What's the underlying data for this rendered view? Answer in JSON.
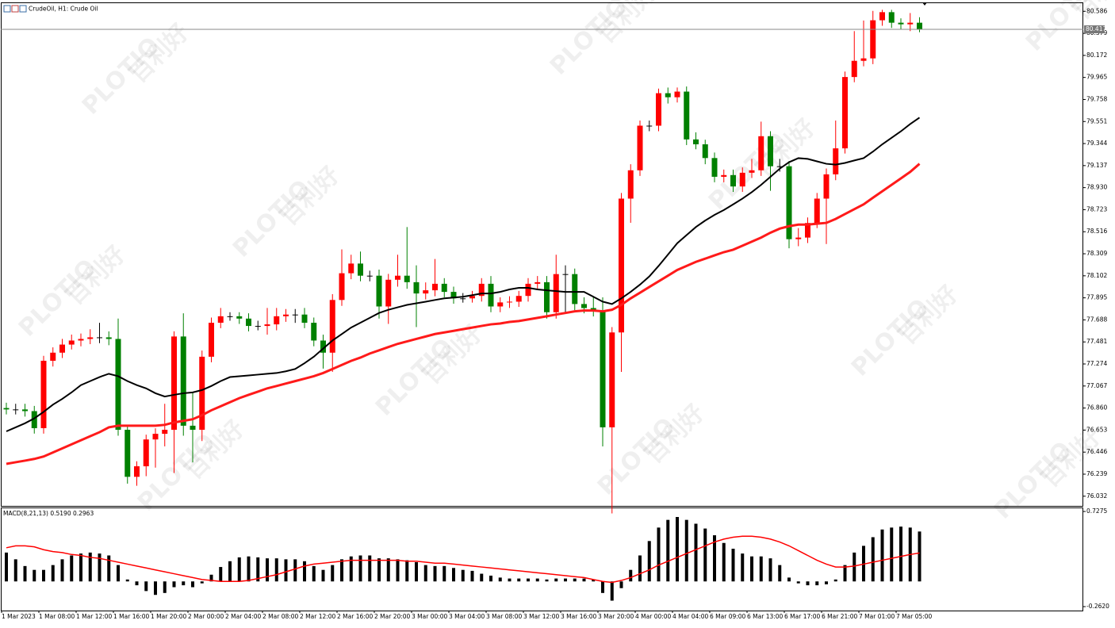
{
  "watermark": {
    "brand": "PLOTIO",
    "cn": "百利好"
  },
  "chart_data": [
    {
      "type": "candlestick",
      "title": "CrudeOil, H1: Crude Oil",
      "categories": [
        "1 Mar 2023",
        null,
        null,
        null,
        "1 Mar 08:00",
        null,
        null,
        null,
        "1 Mar 12:00",
        null,
        null,
        null,
        "1 Mar 16:00",
        null,
        null,
        null,
        "1 Mar 20:00",
        null,
        null,
        null,
        "2 Mar 00:00",
        null,
        null,
        null,
        "2 Mar 04:00",
        null,
        null,
        null,
        "2 Mar 08:00",
        null,
        null,
        null,
        "2 Mar 12:00",
        null,
        null,
        null,
        "2 Mar 16:00",
        null,
        null,
        null,
        "2 Mar 20:00",
        null,
        null,
        null,
        "3 Mar 00:00",
        null,
        null,
        null,
        "3 Mar 04:00",
        null,
        null,
        null,
        "3 Mar 08:00",
        null,
        null,
        null,
        "3 Mar 12:00",
        null,
        null,
        null,
        "3 Mar 16:00",
        null,
        null,
        null,
        "3 Mar 20:00",
        null,
        null,
        null,
        "4 Mar 00:00",
        null,
        null,
        null,
        "4 Mar 04:00",
        null,
        null,
        null,
        "6 Mar 09:00",
        null,
        null,
        null,
        "6 Mar 13:00",
        null,
        null,
        null,
        "6 Mar 17:00",
        null,
        null,
        null,
        "6 Mar 21:00",
        null,
        null,
        null,
        "7 Mar 01:00",
        null,
        null,
        null,
        "7 Mar 05:00",
        null,
        null
      ],
      "open": [
        76.86,
        76.847,
        76.847,
        76.831,
        76.671,
        77.304,
        77.38,
        77.456,
        77.494,
        77.509,
        77.524,
        77.524,
        77.509,
        76.656,
        76.214,
        76.313,
        76.565,
        76.618,
        76.656,
        77.532,
        76.694,
        76.656,
        77.342,
        77.661,
        77.722,
        77.722,
        77.7,
        77.631,
        77.631,
        77.646,
        77.722,
        77.738,
        77.738,
        77.661,
        77.494,
        77.38,
        77.875,
        78.126,
        78.217,
        78.103,
        78.103,
        77.814,
        78.065,
        78.103,
        78.042,
        77.936,
        77.966,
        78.027,
        77.951,
        77.89,
        77.89,
        77.913,
        78.027,
        77.814,
        77.852,
        77.859,
        77.913,
        78.027,
        78.042,
        77.76,
        78.118,
        78.118,
        77.837,
        77.799,
        77.776,
        76.679,
        77.57,
        78.827,
        79.093,
        79.512,
        79.512,
        79.817,
        79.779,
        79.832,
        79.383,
        79.337,
        79.208,
        79.032,
        79.048,
        78.941,
        79.07,
        79.093,
        79.413,
        79.131,
        79.131,
        78.446,
        78.461,
        78.598,
        78.827,
        79.055,
        79.299,
        79.969,
        80.121,
        80.144,
        80.502,
        80.578,
        80.479,
        80.464,
        80.479
      ],
      "high": [
        76.91,
        76.9,
        76.9,
        76.88,
        77.35,
        77.43,
        77.51,
        77.55,
        77.56,
        77.6,
        77.66,
        77.58,
        77.7,
        76.7,
        76.36,
        76.61,
        76.67,
        76.9,
        77.58,
        77.75,
        77.0,
        77.4,
        77.71,
        77.8,
        77.76,
        77.76,
        77.75,
        77.68,
        77.8,
        77.8,
        77.79,
        77.79,
        77.8,
        77.71,
        77.55,
        77.93,
        78.35,
        78.3,
        78.33,
        78.15,
        78.16,
        78.12,
        78.3,
        78.56,
        78.2,
        78.04,
        78.26,
        78.08,
        78.0,
        77.94,
        77.96,
        78.08,
        78.1,
        77.9,
        77.91,
        77.96,
        78.08,
        78.1,
        78.1,
        78.3,
        78.2,
        78.17,
        77.9,
        77.9,
        77.9,
        77.62,
        78.88,
        79.15,
        79.56,
        79.56,
        79.86,
        79.87,
        79.87,
        79.88,
        79.45,
        79.38,
        79.26,
        79.1,
        79.1,
        79.12,
        79.2,
        79.55,
        79.46,
        79.2,
        79.18,
        78.55,
        78.65,
        78.88,
        79.11,
        79.56,
        80.02,
        80.4,
        80.5,
        80.59,
        80.6,
        80.6,
        80.52,
        80.57,
        80.53
      ],
      "low": [
        76.8,
        76.8,
        76.78,
        76.62,
        76.62,
        77.25,
        77.33,
        77.41,
        77.44,
        77.46,
        77.47,
        77.45,
        76.6,
        76.15,
        76.13,
        76.22,
        76.3,
        76.5,
        76.25,
        76.6,
        76.35,
        76.55,
        77.29,
        77.61,
        77.68,
        77.65,
        77.58,
        77.59,
        77.55,
        77.59,
        77.67,
        77.66,
        77.61,
        77.44,
        77.23,
        77.2,
        77.82,
        78.07,
        78.05,
        78.05,
        77.7,
        77.65,
        78.0,
        77.98,
        77.62,
        77.88,
        77.91,
        77.9,
        77.84,
        77.85,
        77.85,
        77.86,
        77.76,
        77.76,
        77.8,
        77.81,
        77.86,
        77.98,
        77.7,
        77.7,
        77.75,
        77.78,
        77.75,
        77.72,
        76.5,
        75.87,
        77.2,
        78.6,
        79.04,
        79.46,
        79.46,
        79.72,
        79.73,
        79.33,
        79.29,
        79.15,
        78.98,
        78.98,
        78.89,
        78.89,
        79.02,
        79.04,
        78.9,
        79.08,
        78.36,
        78.38,
        78.41,
        78.55,
        78.4,
        79.0,
        79.25,
        79.92,
        80.07,
        80.09,
        80.45,
        80.43,
        80.42,
        80.4,
        80.39
      ],
      "close": [
        76.847,
        76.847,
        76.831,
        76.671,
        77.304,
        77.38,
        77.456,
        77.494,
        77.509,
        77.524,
        77.524,
        77.509,
        76.656,
        76.214,
        76.313,
        76.565,
        76.618,
        76.656,
        77.532,
        76.694,
        76.656,
        77.342,
        77.661,
        77.722,
        77.722,
        77.7,
        77.631,
        77.631,
        77.646,
        77.722,
        77.738,
        77.738,
        77.661,
        77.494,
        77.38,
        77.875,
        78.126,
        78.217,
        78.103,
        78.103,
        77.814,
        78.065,
        78.103,
        78.042,
        77.936,
        77.966,
        78.027,
        77.951,
        77.89,
        77.89,
        77.913,
        78.027,
        77.814,
        77.852,
        77.859,
        77.913,
        78.027,
        78.042,
        77.76,
        78.118,
        78.118,
        77.837,
        77.799,
        77.776,
        76.679,
        77.57,
        78.827,
        79.093,
        79.512,
        79.512,
        79.817,
        79.779,
        79.832,
        79.383,
        79.337,
        79.208,
        79.032,
        79.048,
        78.941,
        79.07,
        79.093,
        79.413,
        79.131,
        79.131,
        78.446,
        78.461,
        78.598,
        78.827,
        79.055,
        79.299,
        79.969,
        80.121,
        80.144,
        80.502,
        80.578,
        80.479,
        80.464,
        80.479,
        80.418
      ],
      "up_color": "#ff0000",
      "down_color": "#008000",
      "overlays": [
        {
          "color": "#000000",
          "values": [
            76.641,
            76.679,
            76.717,
            76.763,
            76.824,
            76.892,
            76.946,
            77.007,
            77.075,
            77.113,
            77.151,
            77.182,
            77.159,
            77.113,
            77.075,
            77.045,
            76.999,
            76.968,
            76.984,
            76.999,
            77.007,
            77.029,
            77.067,
            77.113,
            77.151,
            77.159,
            77.166,
            77.174,
            77.182,
            77.189,
            77.205,
            77.227,
            77.281,
            77.342,
            77.418,
            77.494,
            77.555,
            77.616,
            77.661,
            77.707,
            77.753,
            77.783,
            77.806,
            77.829,
            77.844,
            77.859,
            77.875,
            77.89,
            77.898,
            77.905,
            77.92,
            77.936,
            77.936,
            77.951,
            77.974,
            77.989,
            77.989,
            77.974,
            77.966,
            77.958,
            77.951,
            77.951,
            77.951,
            77.905,
            77.859,
            77.837,
            77.89,
            77.951,
            78.019,
            78.096,
            78.195,
            78.301,
            78.408,
            78.484,
            78.56,
            78.621,
            78.674,
            78.72,
            78.773,
            78.827,
            78.888,
            78.956,
            79.032,
            79.108,
            79.169,
            79.207,
            79.2,
            79.177,
            79.154,
            79.146,
            79.162,
            79.185,
            79.207,
            79.268,
            79.337,
            79.398,
            79.459,
            79.527,
            79.588
          ]
        },
        {
          "color": "#ff1a1a",
          "values": [
            76.336,
            76.351,
            76.366,
            76.382,
            76.405,
            76.443,
            76.481,
            76.519,
            76.557,
            76.595,
            76.633,
            76.679,
            76.694,
            76.694,
            76.694,
            76.694,
            76.694,
            76.702,
            76.725,
            76.74,
            76.755,
            76.793,
            76.839,
            76.877,
            76.915,
            76.953,
            76.984,
            77.014,
            77.045,
            77.067,
            77.09,
            77.113,
            77.136,
            77.159,
            77.189,
            77.227,
            77.265,
            77.303,
            77.334,
            77.372,
            77.402,
            77.433,
            77.463,
            77.486,
            77.509,
            77.532,
            77.555,
            77.57,
            77.585,
            77.601,
            77.616,
            77.631,
            77.646,
            77.654,
            77.669,
            77.677,
            77.692,
            77.707,
            77.722,
            77.738,
            77.753,
            77.768,
            77.776,
            77.776,
            77.768,
            77.783,
            77.829,
            77.89,
            77.943,
            77.997,
            78.05,
            78.103,
            78.157,
            78.195,
            78.233,
            78.263,
            78.294,
            78.324,
            78.347,
            78.385,
            78.423,
            78.461,
            78.507,
            78.545,
            78.568,
            78.583,
            78.583,
            78.591,
            78.599,
            78.636,
            78.682,
            78.728,
            78.773,
            78.835,
            78.896,
            78.956,
            79.017,
            79.078,
            79.154
          ]
        }
      ],
      "last_price": 80.417,
      "ylim": [
        75.941,
        80.67
      ],
      "yticks": [
        80.586,
        80.379,
        80.172,
        79.965,
        79.758,
        79.551,
        79.344,
        79.137,
        {
          "value": 78.93,
          "label": "78.930"
        },
        78.723,
        78.516,
        78.309,
        78.102,
        77.895,
        77.688,
        77.481,
        77.274,
        77.067,
        {
          "value": 76.86,
          "label": "76.860"
        },
        76.653,
        76.446,
        76.239,
        76.032
      ]
    },
    {
      "type": "macd",
      "label": "MACD(8,21,13) 0.5190 0.2963",
      "color": "#000000",
      "values": [
        0.3,
        0.23,
        0.16,
        0.12,
        0.12,
        0.17,
        0.23,
        0.27,
        0.29,
        0.3,
        0.29,
        0.27,
        0.17,
        0.02,
        -0.04,
        -0.1,
        -0.14,
        -0.12,
        -0.06,
        -0.04,
        -0.06,
        -0.02,
        0.07,
        0.15,
        0.21,
        0.25,
        0.26,
        0.25,
        0.24,
        0.24,
        0.23,
        0.23,
        0.21,
        0.16,
        0.12,
        0.17,
        0.23,
        0.26,
        0.27,
        0.27,
        0.24,
        0.24,
        0.23,
        0.22,
        0.2,
        0.17,
        0.16,
        0.16,
        0.14,
        0.12,
        0.11,
        0.08,
        0.06,
        0.04,
        0.03,
        0.03,
        0.03,
        0.03,
        0.02,
        0.03,
        0.03,
        0.03,
        0.03,
        0.02,
        -0.12,
        -0.2,
        -0.07,
        0.12,
        0.27,
        0.42,
        0.56,
        0.64,
        0.67,
        0.64,
        0.6,
        0.55,
        0.48,
        0.4,
        0.34,
        0.29,
        0.26,
        0.26,
        0.24,
        0.17,
        0.04,
        -0.02,
        -0.04,
        -0.04,
        -0.03,
        0.02,
        0.17,
        0.3,
        0.37,
        0.46,
        0.54,
        0.56,
        0.57,
        0.56,
        0.519
      ],
      "signal": {
        "color": "#ff0000",
        "values": [
          0.35,
          0.37,
          0.37,
          0.36,
          0.33,
          0.31,
          0.3,
          0.28,
          0.27,
          0.25,
          0.24,
          0.22,
          0.2,
          0.18,
          0.16,
          0.14,
          0.12,
          0.1,
          0.08,
          0.06,
          0.04,
          0.02,
          0.01,
          0,
          0,
          0,
          0.01,
          0.03,
          0.05,
          0.07,
          0.1,
          0.13,
          0.16,
          0.18,
          0.19,
          0.2,
          0.21,
          0.22,
          0.22,
          0.22,
          0.22,
          0.22,
          0.22,
          0.21,
          0.21,
          0.2,
          0.19,
          0.19,
          0.18,
          0.17,
          0.16,
          0.15,
          0.14,
          0.13,
          0.12,
          0.11,
          0.1,
          0.09,
          0.08,
          0.07,
          0.06,
          0.05,
          0.04,
          0.02,
          0,
          -0.01,
          0.01,
          0.04,
          0.08,
          0.12,
          0.17,
          0.21,
          0.25,
          0.29,
          0.33,
          0.37,
          0.41,
          0.44,
          0.46,
          0.47,
          0.47,
          0.46,
          0.44,
          0.41,
          0.37,
          0.32,
          0.27,
          0.22,
          0.18,
          0.15,
          0.15,
          0.16,
          0.18,
          0.2,
          0.22,
          0.24,
          0.26,
          0.28,
          0.2963
        ]
      },
      "ylim": [
        -0.303,
        0.769
      ],
      "yticks": [
        0.7275,
        {
          "value": -0.262,
          "label": "-0.2620"
        }
      ]
    }
  ]
}
